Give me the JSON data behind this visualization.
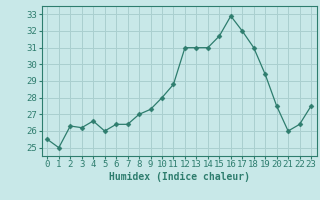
{
  "x": [
    0,
    1,
    2,
    3,
    4,
    5,
    6,
    7,
    8,
    9,
    10,
    11,
    12,
    13,
    14,
    15,
    16,
    17,
    18,
    19,
    20,
    21,
    22,
    23
  ],
  "y": [
    25.5,
    25.0,
    26.3,
    26.2,
    26.6,
    26.0,
    26.4,
    26.4,
    27.0,
    27.3,
    28.0,
    28.8,
    31.0,
    31.0,
    31.0,
    31.7,
    32.9,
    32.0,
    31.0,
    29.4,
    27.5,
    26.0,
    26.4,
    27.5
  ],
  "line_color": "#2e7d6e",
  "marker": "D",
  "marker_size": 2.5,
  "bg_color": "#c8e8e8",
  "grid_color": "#aacfcf",
  "xlabel": "Humidex (Indice chaleur)",
  "ylim": [
    24.5,
    33.5
  ],
  "xlim": [
    -0.5,
    23.5
  ],
  "yticks": [
    25,
    26,
    27,
    28,
    29,
    30,
    31,
    32,
    33
  ],
  "xticks": [
    0,
    1,
    2,
    3,
    4,
    5,
    6,
    7,
    8,
    9,
    10,
    11,
    12,
    13,
    14,
    15,
    16,
    17,
    18,
    19,
    20,
    21,
    22,
    23
  ],
  "tick_color": "#2e7d6e",
  "xlabel_fontsize": 7,
  "tick_fontsize": 6.5
}
